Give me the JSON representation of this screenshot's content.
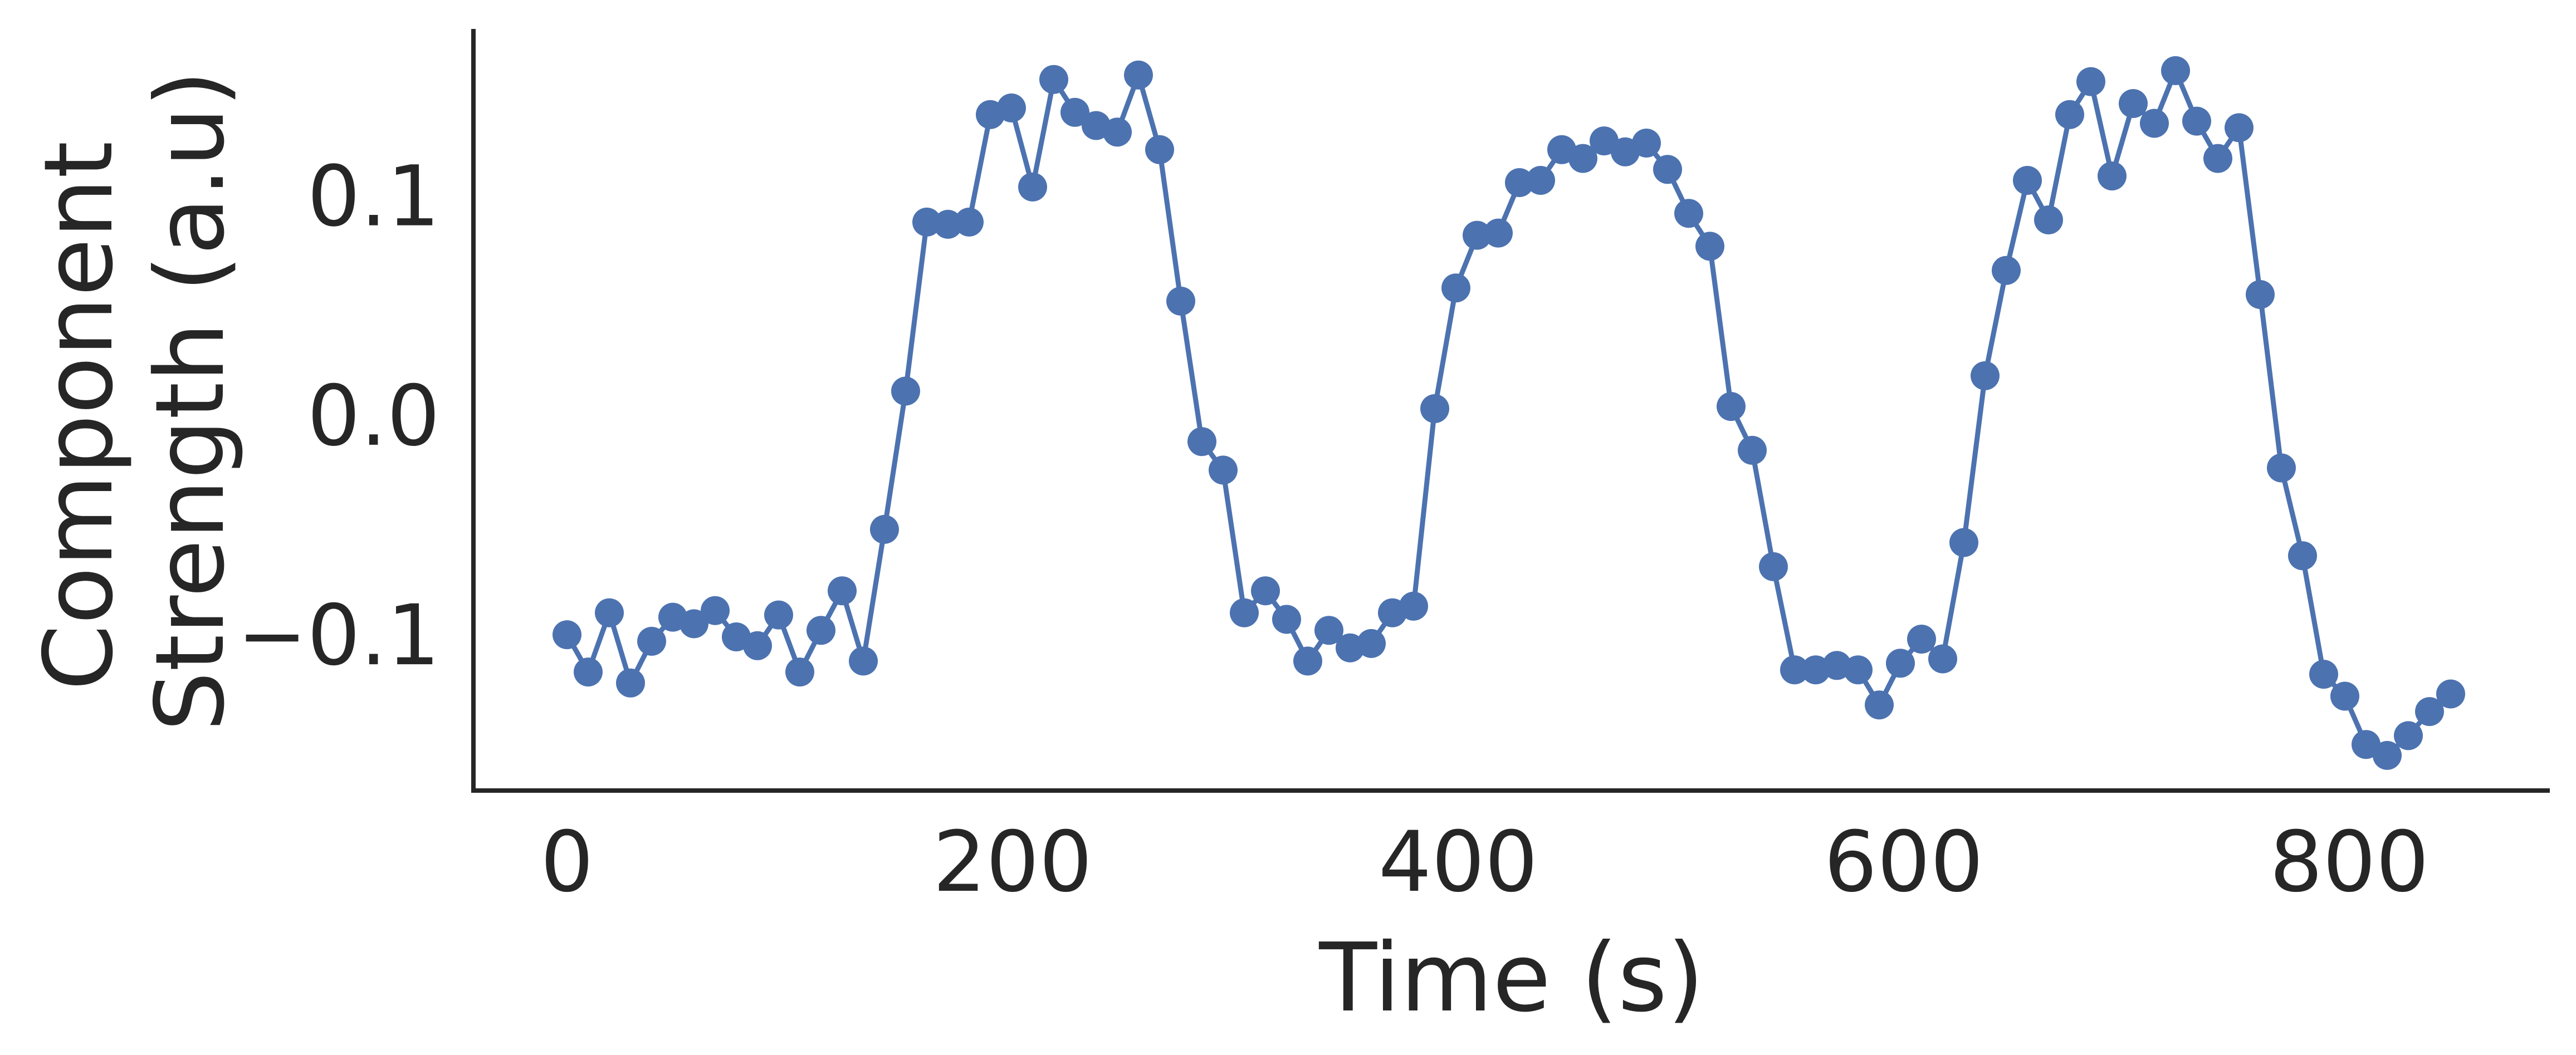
{
  "colors": {
    "series": "#4c72b0",
    "axis": "#262626",
    "background": "#ffffff"
  },
  "chart_data": {
    "type": "line",
    "title": "",
    "xlabel": "Time (s)",
    "ylabel_lines": [
      "Component",
      "Strength (a.u)"
    ],
    "xlim": [
      -42,
      890
    ],
    "ylim": [
      -0.171,
      0.176
    ],
    "xticks": [
      0,
      200,
      400,
      600,
      800
    ],
    "xtick_labels": [
      "0",
      "200",
      "400",
      "600",
      "800"
    ],
    "yticks": [
      -0.1,
      0.0,
      0.1
    ],
    "ytick_labels": [
      "−0.1",
      "0.0",
      "0.1"
    ],
    "grid": false,
    "legend": false,
    "markers": true,
    "series": [
      {
        "x": [
          0,
          9.5,
          19,
          28.5,
          38,
          47.5,
          57,
          66.5,
          76,
          85.5,
          95,
          104.5,
          114,
          123.5,
          133,
          142.5,
          152,
          161.5,
          171,
          180.5,
          190,
          199.5,
          209,
          218.5,
          228,
          237.5,
          247,
          256.5,
          266,
          275.5,
          285,
          294.5,
          304,
          313.5,
          323,
          332.5,
          342,
          351.5,
          361,
          370.5,
          380,
          389.5,
          399,
          408.5,
          418,
          427.5,
          437,
          446.5,
          456,
          465.5,
          475,
          484.5,
          494,
          503.5,
          513,
          522.5,
          532,
          541.5,
          551,
          560.5,
          570,
          579.5,
          589,
          598.5,
          608,
          617.5,
          627,
          636.5,
          646,
          655.5,
          665,
          674.5,
          684,
          693.5,
          703,
          712.5,
          722,
          731.5,
          741,
          750.5,
          760,
          769.5,
          779,
          788.5,
          798,
          807.5,
          817,
          826.5,
          836,
          845.5
        ],
        "y": [
          -0.1,
          -0.117,
          -0.09,
          -0.122,
          -0.103,
          -0.092,
          -0.095,
          -0.089,
          -0.101,
          -0.105,
          -0.091,
          -0.117,
          -0.098,
          -0.08,
          -0.112,
          -0.052,
          0.011,
          0.088,
          0.087,
          0.088,
          0.137,
          0.14,
          0.104,
          0.153,
          0.138,
          0.132,
          0.129,
          0.155,
          0.121,
          0.052,
          -0.012,
          -0.025,
          -0.09,
          -0.08,
          -0.093,
          -0.112,
          -0.098,
          -0.106,
          -0.104,
          -0.09,
          -0.087,
          0.003,
          0.058,
          0.082,
          0.083,
          0.106,
          0.107,
          0.121,
          0.117,
          0.125,
          0.12,
          0.124,
          0.112,
          0.092,
          0.077,
          0.004,
          -0.016,
          -0.069,
          -0.116,
          -0.116,
          -0.114,
          -0.116,
          -0.132,
          -0.113,
          -0.102,
          -0.111,
          -0.058,
          0.018,
          0.066,
          0.107,
          0.089,
          0.137,
          0.152,
          0.109,
          0.142,
          0.133,
          0.157,
          0.134,
          0.117,
          0.131,
          0.055,
          -0.024,
          -0.064,
          -0.118,
          -0.128,
          -0.15,
          -0.155,
          -0.146,
          -0.135,
          -0.127
        ]
      }
    ]
  }
}
